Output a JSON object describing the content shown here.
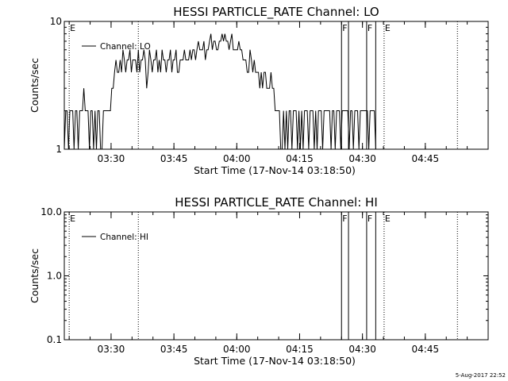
{
  "footer": {
    "timestamp": "5-Aug-2017 22:52"
  },
  "chart_data": [
    {
      "type": "line",
      "title": "HESSI PARTICLE_RATE Channel: LO",
      "xlabel": "Start Time (17-Nov-14 03:18:50)",
      "ylabel": "Counts/sec",
      "x_axis": "time (minutes since 03:18:50)",
      "xlim_times": [
        "03:18:50",
        "05:00:00"
      ],
      "y_scale": "log",
      "ylim": [
        1,
        10
      ],
      "yticks": [
        {
          "value": 1,
          "label": "1"
        },
        {
          "value": 10,
          "label": "10"
        }
      ],
      "xticks": [
        "03:30",
        "03:45",
        "04:00",
        "04:15",
        "04:30",
        "04:45"
      ],
      "legend": {
        "entries": [
          "Channel: LO"
        ],
        "position": "top-left"
      },
      "grid": false,
      "line_color": "#000000",
      "annotation_lines": [
        {
          "time": "03:20:00",
          "style": "dotted",
          "flag": "E"
        },
        {
          "time": "03:36:30",
          "style": "dotted",
          "flag": ""
        },
        {
          "time": "04:25:00",
          "style": "solid",
          "flag": "F"
        },
        {
          "time": "04:26:40",
          "style": "solid",
          "flag": ""
        },
        {
          "time": "04:31:00",
          "style": "solid",
          "flag": "F"
        },
        {
          "time": "04:33:10",
          "style": "solid",
          "flag": ""
        },
        {
          "time": "04:35:10",
          "style": "dotted",
          "flag": "E"
        },
        {
          "time": "04:52:40",
          "style": "dotted",
          "flag": ""
        }
      ],
      "series": [
        {
          "name": "Channel: LO",
          "x_start": "03:18:50",
          "step_seconds": 20,
          "values": [
            1,
            2,
            2,
            1,
            2,
            2,
            2,
            1,
            2,
            2,
            1,
            2,
            2,
            2,
            3,
            2,
            2,
            2,
            1,
            2,
            2,
            1,
            2,
            1,
            2,
            2,
            1,
            1,
            2,
            2,
            2,
            2,
            2,
            2,
            3,
            3,
            4,
            5,
            4,
            4,
            5,
            4,
            6,
            5,
            4,
            5,
            5,
            6,
            4,
            5,
            5,
            5,
            4,
            6,
            4,
            5,
            5,
            6,
            5,
            3,
            4,
            6,
            5,
            4,
            5,
            5,
            6,
            4,
            5,
            4,
            6,
            5,
            5,
            4,
            5,
            5,
            6,
            4,
            5,
            5,
            6,
            4,
            4,
            5,
            5,
            5,
            6,
            5,
            5,
            5,
            6,
            5,
            6,
            6,
            5,
            6,
            7,
            6,
            6,
            6,
            7,
            5,
            6,
            6,
            7,
            8,
            6,
            7,
            7,
            6,
            6,
            7,
            7,
            8,
            7,
            8,
            7,
            7,
            6,
            7,
            8,
            6,
            6,
            6,
            6,
            7,
            6,
            6,
            5,
            5,
            5,
            4,
            4,
            6,
            5,
            4,
            5,
            4,
            4,
            4,
            3,
            4,
            3,
            4,
            4,
            3,
            3,
            3,
            4,
            3,
            3,
            2,
            2,
            2,
            2,
            1,
            1,
            2,
            1,
            2,
            1,
            2,
            2,
            1,
            2,
            2,
            2,
            1,
            2,
            1,
            2,
            1,
            2,
            2,
            2,
            1,
            2,
            2,
            2,
            1,
            2,
            1,
            2,
            2,
            2,
            1,
            2,
            2,
            2,
            2,
            2,
            1,
            2,
            2,
            1,
            2,
            2,
            2,
            1,
            2,
            2,
            2,
            2,
            2,
            1,
            2,
            2,
            1,
            2,
            2,
            2,
            1,
            2,
            2,
            2,
            2,
            2,
            2,
            1,
            2,
            2,
            2,
            2,
            1
          ]
        }
      ]
    },
    {
      "type": "line",
      "title": "HESSI PARTICLE_RATE Channel: HI",
      "xlabel": "Start Time (17-Nov-14 03:18:50)",
      "ylabel": "Counts/sec",
      "xlim_times": [
        "03:18:50",
        "05:00:00"
      ],
      "y_scale": "log",
      "ylim": [
        0.1,
        10
      ],
      "yticks": [
        {
          "value": 0.1,
          "label": "0.1"
        },
        {
          "value": 1,
          "label": "1.0"
        },
        {
          "value": 10,
          "label": "10.0"
        }
      ],
      "xticks": [
        "03:30",
        "03:45",
        "04:00",
        "04:15",
        "04:30",
        "04:45"
      ],
      "legend": {
        "entries": [
          "Channel: HI"
        ],
        "position": "top-left"
      },
      "grid": false,
      "line_color": "#000000",
      "annotation_lines": [
        {
          "time": "03:20:00",
          "style": "dotted",
          "flag": "E"
        },
        {
          "time": "03:36:30",
          "style": "dotted",
          "flag": ""
        },
        {
          "time": "04:25:00",
          "style": "solid",
          "flag": "F"
        },
        {
          "time": "04:26:40",
          "style": "solid",
          "flag": ""
        },
        {
          "time": "04:31:00",
          "style": "solid",
          "flag": "F"
        },
        {
          "time": "04:33:10",
          "style": "solid",
          "flag": ""
        },
        {
          "time": "04:35:10",
          "style": "dotted",
          "flag": "E"
        },
        {
          "time": "04:52:40",
          "style": "dotted",
          "flag": ""
        }
      ],
      "series": [
        {
          "name": "Channel: HI",
          "values": []
        }
      ]
    }
  ]
}
